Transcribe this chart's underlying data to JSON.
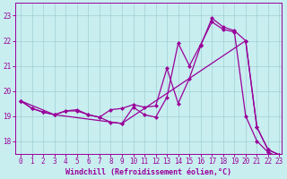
{
  "background_color": "#c8eef0",
  "grid_color": "#a0cfd4",
  "line_color": "#990099",
  "markersize": 2.5,
  "linewidth": 0.9,
  "xlabel": "Windchill (Refroidissement éolien,°C)",
  "xlabel_fontsize": 6,
  "tick_fontsize": 5.5,
  "xlim": [
    -0.5,
    23.2
  ],
  "ylim": [
    17.5,
    23.5
  ],
  "yticks": [
    18,
    19,
    20,
    21,
    22,
    23
  ],
  "xticks": [
    0,
    1,
    2,
    3,
    4,
    5,
    6,
    7,
    8,
    9,
    10,
    11,
    12,
    13,
    14,
    15,
    16,
    17,
    18,
    19,
    20,
    21,
    22,
    23
  ],
  "curve1_x": [
    0,
    1,
    2,
    3,
    4,
    5,
    6,
    7,
    8,
    9,
    10,
    11,
    12,
    13,
    14,
    15,
    16,
    17,
    18,
    19,
    20,
    21,
    22,
    23
  ],
  "curve1_y": [
    19.6,
    19.3,
    19.15,
    19.05,
    19.2,
    19.25,
    19.05,
    18.95,
    19.25,
    19.3,
    19.45,
    19.35,
    19.4,
    20.9,
    19.5,
    20.5,
    21.8,
    22.9,
    22.55,
    22.4,
    22.0,
    18.55,
    17.65,
    17.45
  ],
  "curve2_x": [
    0,
    1,
    2,
    3,
    4,
    5,
    6,
    7,
    8,
    9,
    10,
    11,
    12,
    13,
    14,
    15,
    16,
    17,
    18,
    19,
    20,
    21,
    22,
    23
  ],
  "curve2_y": [
    19.6,
    19.3,
    19.15,
    19.05,
    19.2,
    19.2,
    19.05,
    18.95,
    18.75,
    18.7,
    19.35,
    19.05,
    18.95,
    19.75,
    21.9,
    21.0,
    21.85,
    22.75,
    22.45,
    22.35,
    19.0,
    18.0,
    17.55,
    17.35
  ],
  "curve3_x": [
    0,
    3,
    9,
    20,
    21,
    22,
    23
  ],
  "curve3_y": [
    19.6,
    19.05,
    18.7,
    22.0,
    18.55,
    17.65,
    17.45
  ]
}
